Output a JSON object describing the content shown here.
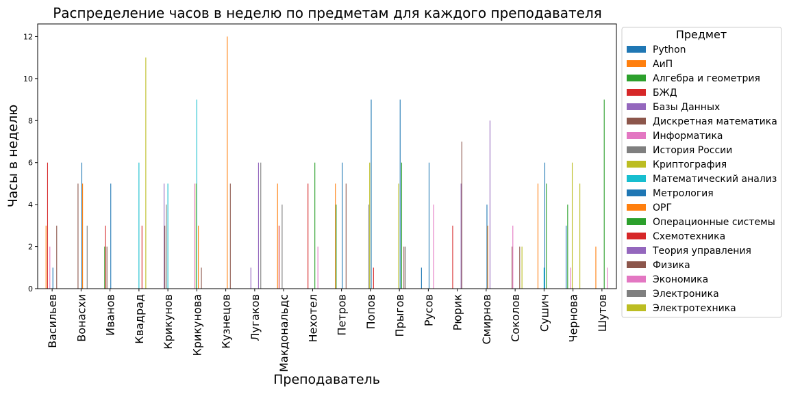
{
  "chart_data": {
    "type": "bar",
    "title": "Распределение часов в неделю по предметам для каждого преподавателя",
    "xlabel": "Преподаватель",
    "ylabel": "Часы в неделю",
    "ylim": [
      0,
      12.6
    ],
    "yticks": [
      0,
      2,
      4,
      6,
      8,
      10,
      12
    ],
    "grid": false,
    "legend": {
      "title": "Предмет",
      "placement": "right"
    },
    "categories": [
      "Васильев",
      "Вонасхи",
      "Иванов",
      "Квадрад",
      "Крикунов",
      "Крикунова",
      "Кузнецов",
      "Лугаков",
      "Макдональдс",
      "Нехотел",
      "Петров",
      "Попов",
      "Прыгов",
      "Русов",
      "Рюрик",
      "Смирнов",
      "Соколов",
      "Сушич",
      "Чернова",
      "Шутов"
    ],
    "series": [
      {
        "name": "Python",
        "color": "#1f77b4",
        "values": [
          0,
          0,
          0,
          0,
          0,
          0,
          0,
          0,
          0,
          0,
          0,
          0,
          0,
          1,
          0,
          0,
          0,
          0,
          3,
          0
        ]
      },
      {
        "name": "АиП",
        "color": "#ff7f0e",
        "values": [
          3,
          0,
          0,
          0,
          0,
          0,
          0,
          0,
          5,
          0,
          5,
          0,
          0,
          0,
          0,
          0,
          0,
          5,
          0,
          2
        ]
      },
      {
        "name": "Алгебра и геометрия",
        "color": "#2ca02c",
        "values": [
          0,
          0,
          2,
          0,
          0,
          0,
          0,
          0,
          0,
          0,
          4,
          0,
          0,
          0,
          0,
          0,
          0,
          0,
          4,
          0
        ]
      },
      {
        "name": "БЖД",
        "color": "#d62728",
        "values": [
          6,
          0,
          3,
          0,
          0,
          0,
          0,
          0,
          3,
          5,
          0,
          0,
          0,
          0,
          3,
          0,
          0,
          0,
          0,
          0
        ]
      },
      {
        "name": "Базы Данных",
        "color": "#9467bd",
        "values": [
          0,
          0,
          0,
          0,
          5,
          0,
          0,
          1,
          0,
          0,
          0,
          0,
          0,
          0,
          0,
          0,
          0,
          0,
          0,
          0
        ]
      },
      {
        "name": "Дискретная математика",
        "color": "#8c564b",
        "values": [
          0,
          5,
          2,
          0,
          3,
          0,
          0,
          0,
          0,
          0,
          0,
          0,
          0,
          0,
          0,
          0,
          2,
          0,
          0,
          0
        ]
      },
      {
        "name": "Информатика",
        "color": "#e377c2",
        "values": [
          2,
          0,
          0,
          0,
          0,
          5,
          0,
          0,
          0,
          0,
          0,
          0,
          0,
          0,
          0,
          0,
          3,
          0,
          1,
          0
        ]
      },
      {
        "name": "История России",
        "color": "#7f7f7f",
        "values": [
          0,
          0,
          0,
          0,
          4,
          0,
          0,
          0,
          4,
          0,
          0,
          4,
          0,
          0,
          0,
          0,
          0,
          0,
          0,
          0
        ]
      },
      {
        "name": "Криптография",
        "color": "#bcbd22",
        "values": [
          0,
          0,
          0,
          0,
          0,
          5,
          0,
          0,
          0,
          0,
          0,
          6,
          5,
          0,
          0,
          0,
          0,
          0,
          6,
          0
        ]
      },
      {
        "name": "Математический анализ",
        "color": "#17becf",
        "values": [
          0,
          0,
          0,
          6,
          5,
          9,
          0,
          0,
          0,
          0,
          0,
          0,
          0,
          0,
          0,
          0,
          0,
          1,
          0,
          0
        ]
      },
      {
        "name": "Метрология",
        "color": "#1f77b4",
        "values": [
          1,
          6,
          5,
          0,
          0,
          0,
          0,
          0,
          0,
          0,
          6,
          9,
          9,
          6,
          0,
          4,
          0,
          6,
          0,
          0
        ]
      },
      {
        "name": "ОРГ",
        "color": "#ff7f0e",
        "values": [
          0,
          5,
          0,
          0,
          0,
          3,
          12,
          0,
          0,
          0,
          0,
          0,
          0,
          0,
          0,
          3,
          0,
          0,
          0,
          0
        ]
      },
      {
        "name": "Операционные системы",
        "color": "#2ca02c",
        "values": [
          0,
          0,
          0,
          0,
          0,
          0,
          0,
          0,
          0,
          6,
          0,
          0,
          6,
          0,
          0,
          0,
          0,
          5,
          0,
          9
        ]
      },
      {
        "name": "Схемотехника",
        "color": "#d62728",
        "values": [
          0,
          0,
          0,
          3,
          0,
          0,
          0,
          0,
          0,
          0,
          0,
          1,
          0,
          0,
          0,
          0,
          0,
          0,
          0,
          0
        ]
      },
      {
        "name": "Теория управления",
        "color": "#9467bd",
        "values": [
          0,
          0,
          0,
          0,
          0,
          0,
          0,
          6,
          0,
          0,
          0,
          0,
          0,
          0,
          5,
          8,
          0,
          0,
          0,
          0
        ]
      },
      {
        "name": "Физика",
        "color": "#8c564b",
        "values": [
          3,
          0,
          0,
          0,
          0,
          1,
          5,
          0,
          0,
          0,
          5,
          0,
          2,
          0,
          7,
          0,
          2,
          0,
          0,
          0
        ]
      },
      {
        "name": "Экономика",
        "color": "#e377c2",
        "values": [
          0,
          0,
          0,
          0,
          0,
          0,
          0,
          0,
          0,
          2,
          0,
          0,
          0,
          4,
          0,
          0,
          0,
          0,
          0,
          1
        ]
      },
      {
        "name": "Электроника",
        "color": "#7f7f7f",
        "values": [
          0,
          3,
          0,
          0,
          0,
          0,
          0,
          6,
          0,
          0,
          0,
          0,
          2,
          0,
          0,
          0,
          0,
          0,
          0,
          0
        ]
      },
      {
        "name": "Электротехника",
        "color": "#bcbd22",
        "values": [
          0,
          0,
          0,
          11,
          0,
          0,
          0,
          0,
          0,
          0,
          0,
          0,
          0,
          0,
          0,
          0,
          2,
          0,
          5,
          0
        ]
      }
    ]
  }
}
